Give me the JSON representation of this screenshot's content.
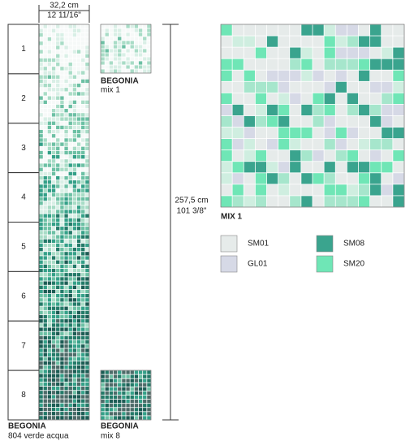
{
  "width_dimension": {
    "cm": "32,2 cm",
    "inch": "12 11/16\""
  },
  "height_dimension": {
    "cm": "257,5 cm",
    "inch": "101 3/8\""
  },
  "row_numbers": [
    "1",
    "2",
    "3",
    "4",
    "5",
    "6",
    "7",
    "8"
  ],
  "main_product": {
    "name": "BEGONIA",
    "subtitle": "804 verde acqua"
  },
  "mix_samples": [
    {
      "name": "BEGONIA",
      "subtitle": "mix 1"
    },
    {
      "name": "BEGONIA",
      "subtitle": "mix 8"
    }
  ],
  "mix_detail": {
    "title": "MIX 1"
  },
  "legend": [
    {
      "code": "SM01",
      "color": "#e6ebea"
    },
    {
      "code": "GL01",
      "color": "#d6d9e6"
    },
    {
      "code": "SM08",
      "color": "#3aa48e"
    },
    {
      "code": "SM20",
      "color": "#6fe6b6"
    }
  ]
}
